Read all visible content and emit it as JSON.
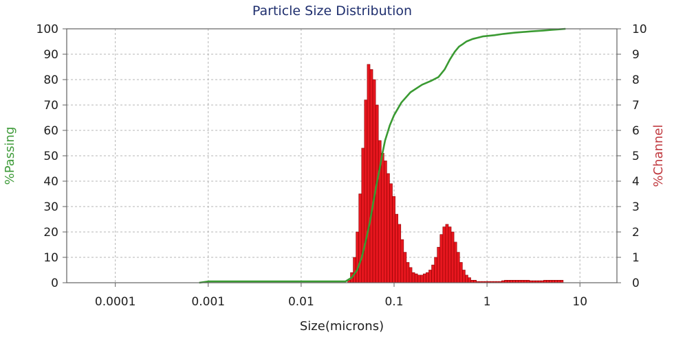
{
  "chart_data": {
    "type": "bar",
    "title": "Particle Size Distribution",
    "xlabel": "Size(microns)",
    "ylabel_left": "%Passing",
    "ylabel_right": "%Channel",
    "x_scale": "log",
    "xlim": [
      3e-05,
      25
    ],
    "ylim_left": [
      0,
      100
    ],
    "ylim_right": [
      0,
      10
    ],
    "x_ticks": [
      0.0001,
      0.001,
      0.01,
      0.1,
      1,
      10
    ],
    "x_tick_labels": [
      "0.0001",
      "0.001",
      "0.01",
      "0.1",
      "1",
      "10"
    ],
    "y_left_ticks": [
      0,
      10,
      20,
      30,
      40,
      50,
      60,
      70,
      80,
      90,
      100
    ],
    "y_right_ticks": [
      0,
      1,
      2,
      3,
      4,
      5,
      6,
      7,
      8,
      9,
      10
    ],
    "grid": true,
    "colors": {
      "bars": "#e8171f",
      "bar_edge": "#8a0000",
      "passing_line": "#3a9a32",
      "left_label": "#3f9b3a",
      "right_label": "#c0393f",
      "title": "#1f2f6e"
    },
    "series": [
      {
        "name": "%Channel",
        "type": "bar",
        "axis": "right",
        "bin_ratio": 1.0718,
        "x": [
          0.0328,
          0.0351,
          0.0376,
          0.0403,
          0.0432,
          0.0463,
          0.0496,
          0.0532,
          0.057,
          0.0611,
          0.0655,
          0.0702,
          0.0752,
          0.0806,
          0.0864,
          0.0926,
          0.0993,
          0.1064,
          0.1141,
          0.1223,
          0.1311,
          0.1405,
          0.1506,
          0.1614,
          0.173,
          0.1854,
          0.1987,
          0.213,
          0.2283,
          0.2447,
          0.2623,
          0.2811,
          0.3013,
          0.323,
          0.3462,
          0.371,
          0.3977,
          0.4263,
          0.4569,
          0.4897,
          0.5249,
          0.5626,
          0.603,
          0.6463,
          0.6927,
          0.7425,
          0.7958,
          0.853,
          0.9142,
          0.98,
          1.05,
          1.126,
          1.207,
          1.293,
          1.386,
          1.486,
          1.593,
          1.707,
          1.83,
          1.961,
          2.102,
          2.253,
          2.415,
          2.589,
          2.775,
          2.974,
          3.188,
          3.417,
          3.662,
          3.925,
          4.207,
          4.51,
          4.834,
          5.181,
          5.553,
          5.952,
          6.38
        ],
        "values": [
          0.1,
          0.4,
          1.0,
          2.0,
          3.5,
          5.3,
          7.2,
          8.6,
          8.4,
          8.0,
          7.0,
          5.6,
          5.1,
          4.8,
          4.3,
          3.9,
          3.4,
          2.7,
          2.3,
          1.7,
          1.2,
          0.8,
          0.6,
          0.4,
          0.35,
          0.3,
          0.3,
          0.35,
          0.4,
          0.5,
          0.7,
          1.0,
          1.4,
          1.9,
          2.2,
          2.3,
          2.2,
          2.0,
          1.6,
          1.2,
          0.8,
          0.5,
          0.3,
          0.2,
          0.1,
          0.1,
          0.05,
          0.05,
          0.05,
          0.05,
          0.05,
          0.05,
          0.05,
          0.05,
          0.05,
          0.08,
          0.1,
          0.1,
          0.1,
          0.1,
          0.1,
          0.1,
          0.1,
          0.1,
          0.1,
          0.08,
          0.08,
          0.08,
          0.08,
          0.08,
          0.1,
          0.1,
          0.1,
          0.1,
          0.1,
          0.1,
          0.1
        ]
      },
      {
        "name": "%Passing",
        "type": "line",
        "axis": "left",
        "x": [
          0.0008,
          0.001,
          0.01,
          0.03,
          0.035,
          0.04,
          0.045,
          0.05,
          0.055,
          0.06,
          0.065,
          0.07,
          0.075,
          0.08,
          0.09,
          0.1,
          0.12,
          0.15,
          0.2,
          0.25,
          0.3,
          0.35,
          0.4,
          0.45,
          0.5,
          0.55,
          0.6,
          0.7,
          0.8,
          0.9,
          1.0,
          1.2,
          1.5,
          2.0,
          3.0,
          4.0,
          5.0,
          6.0,
          7.0
        ],
        "values": [
          0,
          0.5,
          0.5,
          0.5,
          2,
          5,
          10,
          17,
          24,
          32,
          39,
          45,
          51,
          56,
          62,
          66,
          71,
          75,
          78,
          79.5,
          81,
          84,
          88,
          91,
          93,
          94,
          95,
          96,
          96.5,
          97,
          97.2,
          97.5,
          98,
          98.5,
          99,
          99.3,
          99.6,
          99.8,
          100
        ]
      }
    ]
  }
}
